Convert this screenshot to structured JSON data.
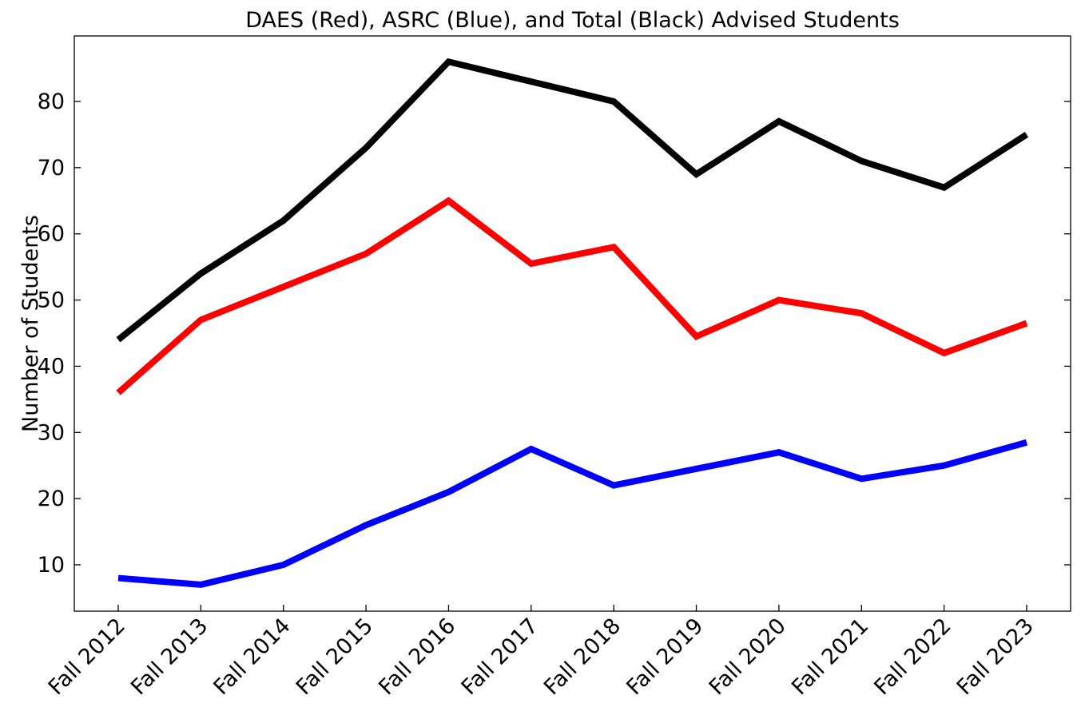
{
  "chart_data": {
    "type": "line",
    "title": "DAES (Red), ASRC (Blue), and Total (Black) Advised Students",
    "xlabel": "",
    "ylabel": "Number of Students",
    "categories": [
      "Fall 2012",
      "Fall 2013",
      "Fall 2014",
      "Fall 2015",
      "Fall 2016",
      "Fall 2017",
      "Fall 2018",
      "Fall 2019",
      "Fall 2020",
      "Fall 2021",
      "Fall 2022",
      "Fall 2023"
    ],
    "yticks": [
      10,
      20,
      30,
      40,
      50,
      60,
      70,
      80
    ],
    "ylim": [
      3,
      90
    ],
    "grid": false,
    "series": [
      {
        "color": "#000000",
        "values": [
          44,
          54,
          62,
          73,
          86,
          83,
          80,
          69,
          77,
          71,
          67,
          75
        ]
      },
      {
        "color": "#ff0000",
        "values": [
          36,
          47,
          52,
          57,
          65,
          55.5,
          58,
          44.5,
          50,
          48,
          42,
          46.5
        ]
      },
      {
        "color": "#0000ff",
        "values": [
          8,
          7,
          10,
          16,
          21,
          27.5,
          22,
          24.5,
          27,
          23,
          25,
          28.5
        ]
      }
    ]
  }
}
